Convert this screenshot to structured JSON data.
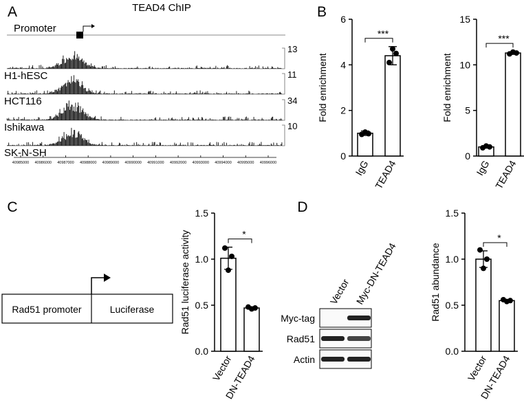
{
  "panel_labels": [
    "A",
    "B",
    "C",
    "D"
  ],
  "panel_a": {
    "title": "TEAD4 ChIP",
    "promoter_label": "Promoter",
    "tracks": [
      {
        "name": "H1-hESC",
        "scale": "13"
      },
      {
        "name": "HCT116",
        "scale": "11"
      },
      {
        "name": "Ishikawa",
        "scale": "34"
      },
      {
        "name": "SK-N-SH",
        "scale": "10"
      }
    ],
    "coordinates": [
      "40985000",
      "40986000",
      "40987000",
      "40988000",
      "40989000",
      "40990000",
      "40991000",
      "40992000",
      "40993000",
      "40994000",
      "40995000",
      "40996000"
    ]
  },
  "panel_c_diagram": {
    "promoter": "Rad51 promoter",
    "reporter": "Luciferase"
  },
  "panel_d_blot": {
    "lanes": [
      "Vector",
      "Myc-DN-TEAD4"
    ],
    "rows": [
      "Myc-tag",
      "Rad51",
      "Actin"
    ]
  },
  "chart_data": [
    {
      "type": "bar",
      "ylabel": "Fold enrichment",
      "categories": [
        "IgG",
        "TEAD4"
      ],
      "values": [
        1.0,
        4.4
      ],
      "errors": [
        0.1,
        0.4
      ],
      "points": [
        [
          0.95,
          1.05,
          0.98
        ],
        [
          4.1,
          4.7,
          4.5
        ]
      ],
      "significance": "***",
      "ylim": [
        0,
        6
      ],
      "yticks": [
        0,
        2,
        4,
        6
      ]
    },
    {
      "type": "bar",
      "ylabel": "Fold enrichment",
      "categories": [
        "IgG",
        "TEAD4"
      ],
      "values": [
        1.0,
        11.3
      ],
      "errors": [
        0.1,
        0.15
      ],
      "points": [
        [
          0.9,
          1.1,
          1.0
        ],
        [
          11.2,
          11.4,
          11.3
        ]
      ],
      "significance": "***",
      "ylim": [
        0,
        15
      ],
      "yticks": [
        0,
        5,
        10,
        15
      ]
    },
    {
      "type": "bar",
      "ylabel": "Rad51 luciferase activity",
      "categories": [
        "Vector",
        "DN-TEAD4"
      ],
      "values": [
        1.01,
        0.47
      ],
      "errors": [
        0.12,
        0.01
      ],
      "points": [
        [
          1.12,
          0.88,
          1.03
        ],
        [
          0.48,
          0.46,
          0.47
        ]
      ],
      "significance": "*",
      "ylim": [
        0,
        1.5
      ],
      "yticks": [
        {
          "value": 0,
          "label": "0.0"
        },
        0.5,
        {
          "value": 1,
          "label": "1.0"
        },
        1.5
      ]
    },
    {
      "type": "bar",
      "ylabel": "Rad51 abundance",
      "categories": [
        "Vector",
        "DN-TEAD4"
      ],
      "values": [
        1.0,
        0.55
      ],
      "errors": [
        0.09,
        0.01
      ],
      "points": [
        [
          1.1,
          0.9,
          1.0
        ],
        [
          0.56,
          0.54,
          0.55
        ]
      ],
      "significance": "*",
      "ylim": [
        0,
        1.5
      ],
      "yticks": [
        {
          "value": 0,
          "label": "0.0"
        },
        0.5,
        {
          "value": 1,
          "label": "1.0"
        },
        1.5
      ]
    }
  ]
}
